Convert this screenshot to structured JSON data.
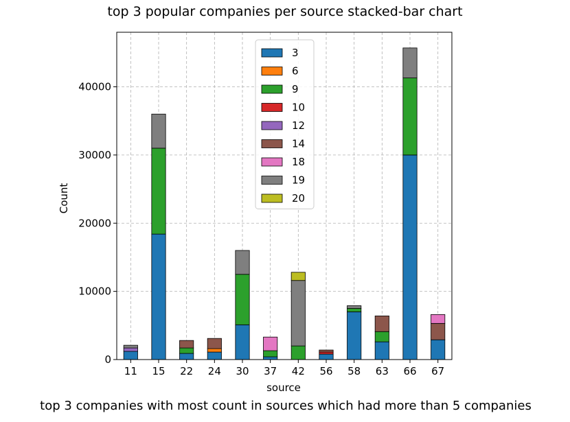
{
  "chart_data": {
    "type": "bar",
    "stacked": true,
    "title": "top 3 popular companies per source stacked-bar chart",
    "caption": "top 3 companies with most count in sources which had more than 5 companies",
    "xlabel": "source",
    "ylabel": "Count",
    "ylim": [
      0,
      48000
    ],
    "yticks": [
      0,
      10000,
      20000,
      30000,
      40000
    ],
    "ytick_labels": [
      "0",
      "10000",
      "20000",
      "30000",
      "40000"
    ],
    "grid": true,
    "legend_position": "top-center",
    "categories": [
      "11",
      "15",
      "22",
      "24",
      "30",
      "37",
      "42",
      "56",
      "58",
      "63",
      "66",
      "67"
    ],
    "series": [
      {
        "name": "3",
        "color": "#1f77b4",
        "values": [
          1200,
          18400,
          900,
          1100,
          5100,
          400,
          0,
          800,
          7000,
          2600,
          30000,
          2900
        ]
      },
      {
        "name": "6",
        "color": "#ff7f0e",
        "values": [
          0,
          0,
          0,
          500,
          0,
          0,
          0,
          0,
          0,
          0,
          0,
          0
        ]
      },
      {
        "name": "9",
        "color": "#2ca02c",
        "values": [
          0,
          12600,
          800,
          0,
          7400,
          900,
          2000,
          0,
          500,
          1500,
          11300,
          0
        ]
      },
      {
        "name": "10",
        "color": "#d62728",
        "values": [
          0,
          0,
          0,
          0,
          0,
          0,
          0,
          300,
          0,
          0,
          0,
          0
        ]
      },
      {
        "name": "12",
        "color": "#9467bd",
        "values": [
          500,
          0,
          0,
          0,
          0,
          0,
          0,
          0,
          0,
          0,
          0,
          0
        ]
      },
      {
        "name": "14",
        "color": "#8c564b",
        "values": [
          0,
          0,
          1100,
          1500,
          0,
          0,
          0,
          300,
          0,
          2300,
          0,
          2400
        ]
      },
      {
        "name": "18",
        "color": "#e377c2",
        "values": [
          0,
          0,
          0,
          0,
          0,
          2000,
          0,
          0,
          0,
          0,
          0,
          1300
        ]
      },
      {
        "name": "19",
        "color": "#7f7f7f",
        "values": [
          400,
          5000,
          0,
          0,
          3500,
          0,
          9600,
          0,
          400,
          0,
          4400,
          0
        ]
      },
      {
        "name": "20",
        "color": "#bcbd22",
        "values": [
          0,
          0,
          0,
          0,
          0,
          0,
          1200,
          0,
          0,
          0,
          0,
          0
        ]
      }
    ]
  }
}
